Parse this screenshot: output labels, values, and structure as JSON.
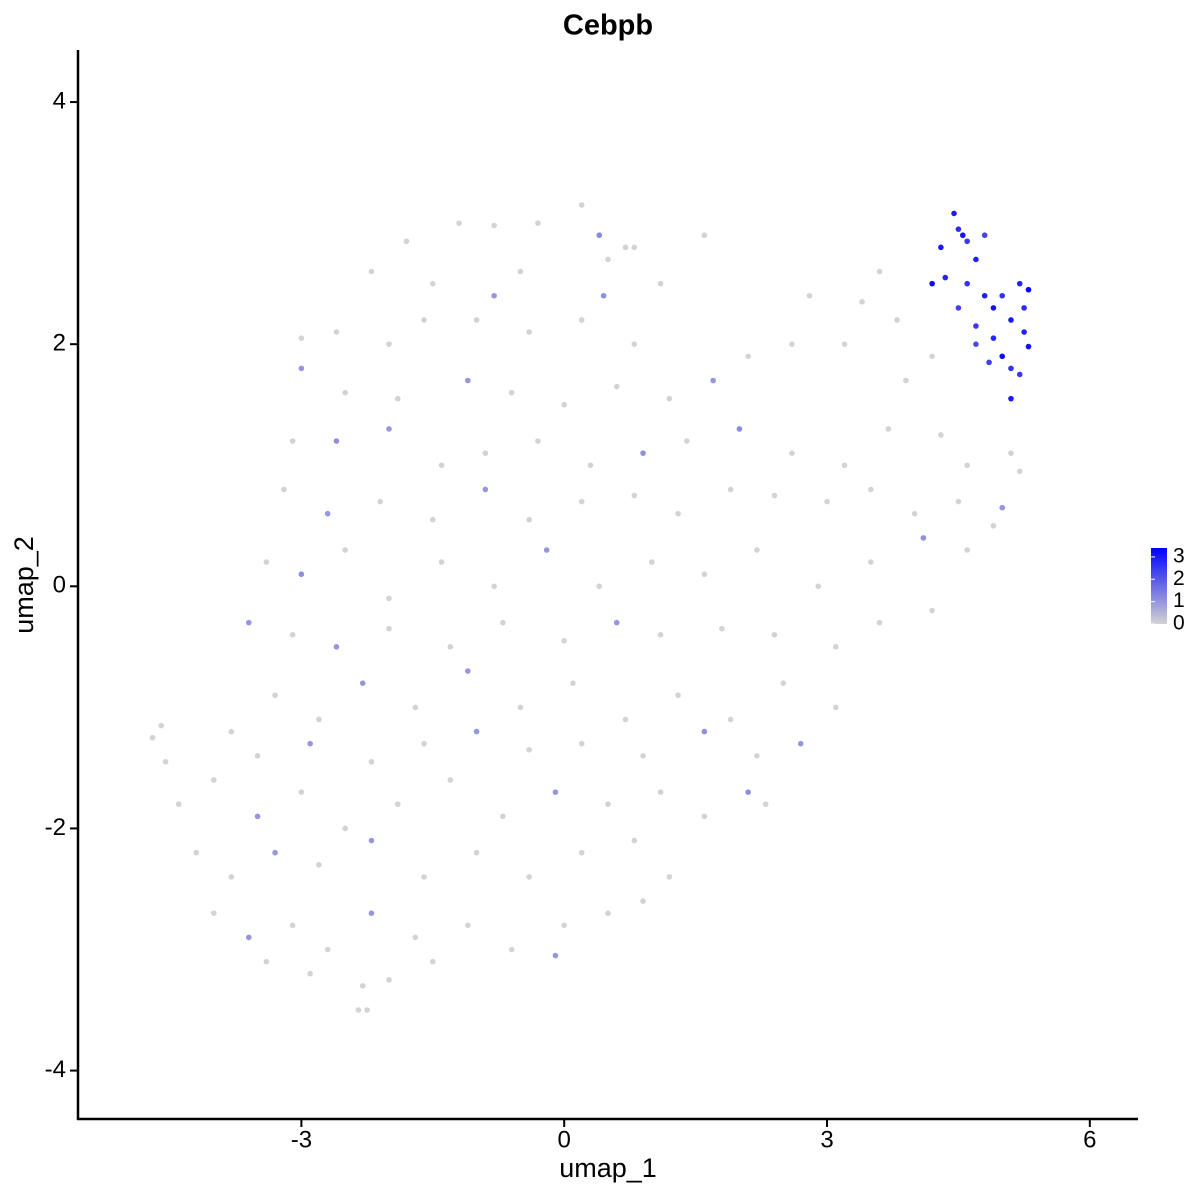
{
  "chart_data": {
    "type": "scatter",
    "title": "Cebpb",
    "x_label": "umap_1",
    "y_label": "umap_2",
    "xlim": [
      -5.55,
      6.55
    ],
    "ylim": [
      -4.4,
      4.43
    ],
    "xticks": [
      -3,
      0,
      3,
      6
    ],
    "yticks": [
      -4,
      -2,
      0,
      2,
      4
    ],
    "grid": false,
    "color_scale": {
      "colors": [
        "#d3d3d3",
        "#0000ff"
      ],
      "range": [
        0,
        3.4
      ],
      "ticks": [
        0,
        1,
        2,
        3
      ]
    },
    "x": [
      -1.8,
      -1.2,
      -0.8,
      -0.3,
      0.2,
      0.4,
      0.8,
      1.6,
      -2.2,
      -1.5,
      -0.5,
      0.5,
      0.7,
      -0.8,
      0.45,
      1.1,
      -3.0,
      -2.6,
      -2.0,
      -1.6,
      -1.0,
      -0.4,
      0.2,
      0.8,
      -3.0,
      -2.5,
      -1.9,
      -1.1,
      -0.6,
      0.0,
      0.6,
      1.2,
      1.7,
      2.1,
      2.6,
      3.2,
      2.8,
      3.4,
      3.6,
      3.8,
      4.2,
      3.9,
      -3.1,
      -2.6,
      -2.0,
      -1.4,
      -0.9,
      -0.3,
      0.3,
      0.9,
      1.4,
      2.0,
      2.6,
      3.2,
      3.7,
      4.3,
      4.6,
      5.1,
      5.2,
      -3.2,
      -2.7,
      -2.1,
      -1.5,
      -0.9,
      -0.4,
      0.2,
      0.8,
      1.3,
      1.9,
      2.4,
      3.0,
      3.5,
      4.0,
      4.5,
      5.0,
      -3.4,
      -3.0,
      -2.5,
      -2.0,
      -1.4,
      -0.8,
      -0.2,
      0.4,
      1.0,
      1.6,
      2.2,
      2.9,
      3.5,
      4.1,
      4.6,
      4.9,
      -3.6,
      -3.1,
      -2.6,
      -2.0,
      -1.3,
      -0.7,
      0.0,
      0.6,
      1.1,
      1.8,
      2.4,
      3.1,
      3.6,
      4.2,
      -3.8,
      -3.3,
      -2.8,
      -2.3,
      -1.7,
      -1.1,
      -0.5,
      0.1,
      0.7,
      1.3,
      1.9,
      2.5,
      3.1,
      -4.7,
      -4.6,
      -4.55,
      -3.5,
      -2.9,
      -2.2,
      -1.6,
      -1.0,
      -0.4,
      0.2,
      0.9,
      1.6,
      2.2,
      2.7,
      -4.4,
      -4.0,
      -3.5,
      -3.0,
      -2.5,
      -1.9,
      -1.3,
      -0.7,
      -0.1,
      0.5,
      1.1,
      1.6,
      2.1,
      2.3,
      -4.2,
      -3.8,
      -3.3,
      -2.8,
      -2.2,
      -1.6,
      -1.0,
      -0.4,
      0.2,
      0.8,
      1.2,
      -4.0,
      -3.6,
      -3.1,
      -2.7,
      -2.2,
      -1.7,
      -1.1,
      -0.6,
      0.0,
      0.5,
      0.9,
      -3.4,
      -2.9,
      -2.3,
      -2.0,
      -1.5,
      -0.1,
      -2.35,
      -2.25,
      4.45,
      4.5,
      4.55,
      4.6,
      4.3,
      4.7,
      4.8,
      4.2,
      4.35,
      4.6,
      4.8,
      4.5,
      4.9,
      5.0,
      5.2,
      5.3,
      5.25,
      5.1,
      4.7,
      4.9,
      5.0,
      4.85,
      5.1,
      5.3,
      5.2,
      5.25,
      4.7,
      5.1
    ],
    "y": [
      2.85,
      3.0,
      2.98,
      3.0,
      3.15,
      2.9,
      2.8,
      2.9,
      2.6,
      2.5,
      2.6,
      2.7,
      2.8,
      2.4,
      2.4,
      2.5,
      2.05,
      2.1,
      2.0,
      2.2,
      2.2,
      2.1,
      2.2,
      2.0,
      1.8,
      1.6,
      1.55,
      1.7,
      1.6,
      1.5,
      1.65,
      1.55,
      1.7,
      1.9,
      2.0,
      2.0,
      2.4,
      2.35,
      2.6,
      2.2,
      1.9,
      1.7,
      1.2,
      1.2,
      1.3,
      1.0,
      1.1,
      1.2,
      1.0,
      1.1,
      1.2,
      1.3,
      1.1,
      1.0,
      1.3,
      1.25,
      1.0,
      1.1,
      0.95,
      0.8,
      0.6,
      0.7,
      0.55,
      0.8,
      0.55,
      0.7,
      0.75,
      0.6,
      0.8,
      0.75,
      0.7,
      0.8,
      0.6,
      0.7,
      0.65,
      0.2,
      0.1,
      0.3,
      -0.1,
      0.2,
      0.0,
      0.3,
      0.0,
      0.2,
      0.1,
      0.3,
      0.0,
      0.2,
      0.4,
      0.3,
      0.5,
      -0.3,
      -0.4,
      -0.5,
      -0.35,
      -0.5,
      -0.3,
      -0.45,
      -0.3,
      -0.4,
      -0.35,
      -0.4,
      -0.5,
      -0.3,
      -0.2,
      -1.2,
      -0.9,
      -1.1,
      -0.8,
      -1.0,
      -0.7,
      -1.0,
      -0.8,
      -1.1,
      -0.9,
      -1.1,
      -0.8,
      -1.0,
      -1.25,
      -1.15,
      -1.45,
      -1.4,
      -1.3,
      -1.45,
      -1.3,
      -1.2,
      -1.35,
      -1.3,
      -1.4,
      -1.2,
      -1.4,
      -1.3,
      -1.8,
      -1.6,
      -1.9,
      -1.7,
      -2.0,
      -1.8,
      -1.6,
      -1.9,
      -1.7,
      -1.8,
      -1.7,
      -1.9,
      -1.7,
      -1.8,
      -2.2,
      -2.4,
      -2.2,
      -2.3,
      -2.1,
      -2.4,
      -2.2,
      -2.4,
      -2.2,
      -2.1,
      -2.4,
      -2.7,
      -2.9,
      -2.8,
      -3.0,
      -2.7,
      -2.9,
      -2.8,
      -3.0,
      -2.8,
      -2.7,
      -2.6,
      -3.1,
      -3.2,
      -3.3,
      -3.25,
      -3.1,
      -3.05,
      -3.5,
      -3.5,
      3.08,
      2.95,
      2.9,
      2.85,
      2.8,
      2.7,
      2.9,
      2.5,
      2.55,
      2.5,
      2.4,
      2.3,
      2.3,
      2.4,
      2.5,
      2.45,
      2.3,
      2.2,
      2.15,
      2.05,
      1.9,
      1.85,
      1.8,
      1.98,
      1.75,
      2.1,
      2.0,
      1.55
    ],
    "values": [
      0,
      0,
      0,
      0,
      0,
      1.2,
      0,
      0,
      0,
      0,
      0,
      0,
      0,
      1.0,
      1.1,
      0,
      0,
      0,
      0,
      0,
      0,
      0,
      0,
      0,
      1.0,
      0,
      0,
      1.0,
      0,
      0,
      0,
      0,
      1.0,
      0,
      0,
      0,
      0,
      0,
      0,
      0,
      0,
      0,
      0,
      1.1,
      1.0,
      0,
      0,
      0,
      0,
      1.1,
      0,
      1.2,
      0,
      0,
      0,
      0,
      0,
      0,
      0,
      0,
      1.0,
      0,
      0,
      1.0,
      0,
      0,
      0,
      0,
      0,
      0,
      0,
      0,
      0,
      0,
      1.0,
      0,
      1.1,
      0,
      0,
      0,
      0,
      1.0,
      0,
      0,
      0,
      0,
      0,
      0,
      1.1,
      0,
      0,
      1.0,
      0,
      1.0,
      0,
      0,
      0,
      0,
      1.0,
      0,
      0,
      0,
      0,
      0,
      0,
      0,
      0,
      0,
      1.0,
      0,
      1.0,
      0,
      0,
      0,
      0,
      0,
      0,
      0,
      0,
      0,
      0,
      0,
      1.0,
      0,
      0,
      1.0,
      0,
      0,
      0,
      1.1,
      0,
      1.0,
      0,
      0,
      1.0,
      0,
      0,
      0,
      0,
      0,
      1.0,
      0,
      0,
      0,
      1.1,
      0,
      0,
      0,
      1.0,
      0,
      1.0,
      0,
      0,
      0,
      0,
      0,
      0,
      0,
      1.0,
      0,
      0,
      1.0,
      0,
      0,
      0,
      0,
      0,
      0,
      0,
      0,
      0,
      0,
      0,
      1.0,
      0,
      0,
      3.0,
      2.7,
      3.1,
      2.5,
      3.0,
      2.9,
      2.3,
      3.2,
      2.8,
      2.6,
      2.9,
      2.4,
      3.1,
      2.6,
      2.8,
      3.3,
      2.7,
      3.0,
      2.5,
      2.8,
      3.2,
      2.4,
      2.6,
      3.1,
      2.5,
      2.9,
      2.2,
      3.0
    ]
  }
}
